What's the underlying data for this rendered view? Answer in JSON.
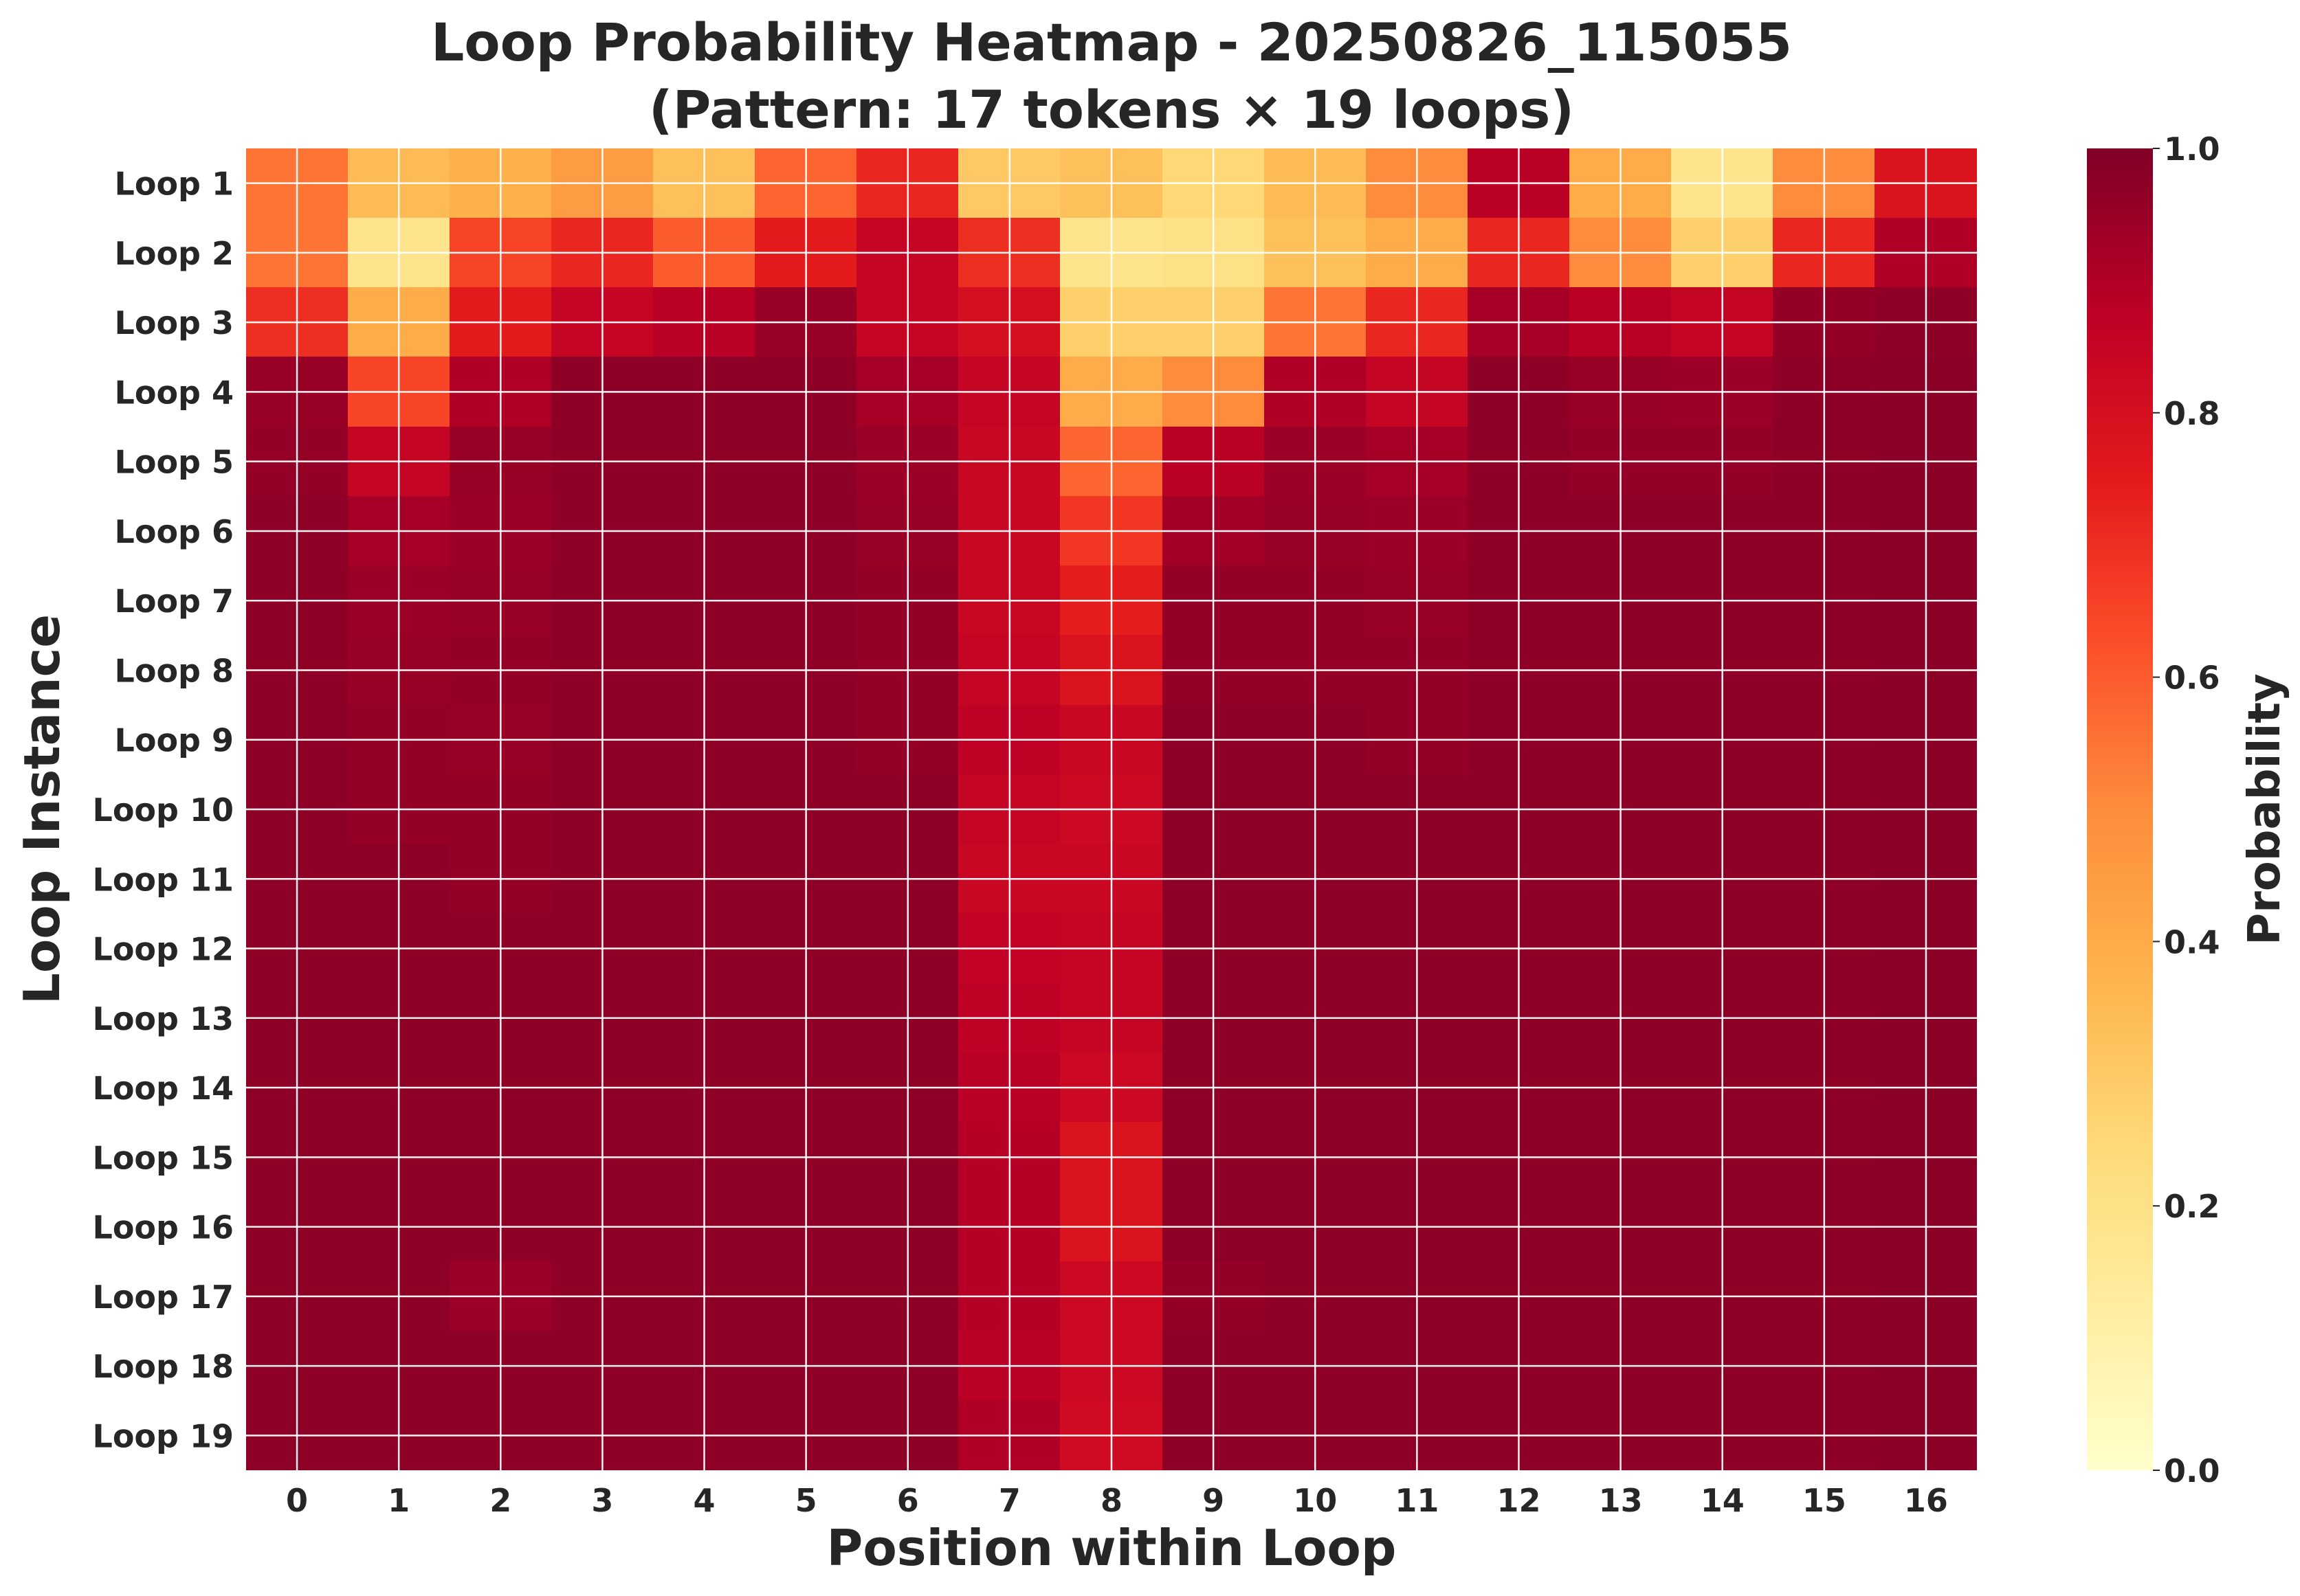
{
  "chart_data": {
    "type": "heatmap",
    "title_line1": "Loop Probability Heatmap - 20250826_115055",
    "title_line2": "(Pattern: 17 tokens × 19 loops)",
    "xlabel": "Position within Loop",
    "ylabel": "Loop Instance",
    "colorbar_label": "Probability",
    "colormap": "YlOrRd",
    "vmin": 0.0,
    "vmax": 1.0,
    "colorbar_ticks": [
      "0.0",
      "0.2",
      "0.4",
      "0.6",
      "0.8",
      "1.0"
    ],
    "x_categories": [
      "0",
      "1",
      "2",
      "3",
      "4",
      "5",
      "6",
      "7",
      "8",
      "9",
      "10",
      "11",
      "12",
      "13",
      "14",
      "15",
      "16"
    ],
    "y_categories": [
      "Loop 1",
      "Loop 2",
      "Loop 3",
      "Loop 4",
      "Loop 5",
      "Loop 6",
      "Loop 7",
      "Loop 8",
      "Loop 9",
      "Loop 10",
      "Loop 11",
      "Loop 12",
      "Loop 13",
      "Loop 14",
      "Loop 15",
      "Loop 16",
      "Loop 17",
      "Loop 18",
      "Loop 19"
    ],
    "grid": true,
    "values": [
      [
        0.55,
        0.35,
        0.38,
        0.45,
        0.33,
        0.58,
        0.72,
        0.3,
        0.33,
        0.25,
        0.35,
        0.5,
        0.88,
        0.4,
        0.18,
        0.5,
        0.78
      ],
      [
        0.55,
        0.18,
        0.65,
        0.72,
        0.6,
        0.75,
        0.85,
        0.7,
        0.18,
        0.2,
        0.33,
        0.4,
        0.72,
        0.5,
        0.28,
        0.72,
        0.9
      ],
      [
        0.7,
        0.4,
        0.75,
        0.85,
        0.88,
        0.95,
        0.85,
        0.8,
        0.28,
        0.28,
        0.55,
        0.72,
        0.92,
        0.88,
        0.85,
        0.96,
        0.97
      ],
      [
        0.95,
        0.65,
        0.9,
        0.97,
        0.97,
        0.97,
        0.92,
        0.85,
        0.4,
        0.5,
        0.9,
        0.85,
        0.97,
        0.95,
        0.94,
        0.97,
        0.98
      ],
      [
        0.96,
        0.85,
        0.95,
        0.97,
        0.97,
        0.97,
        0.94,
        0.84,
        0.58,
        0.88,
        0.94,
        0.92,
        0.97,
        0.96,
        0.96,
        0.97,
        0.98
      ],
      [
        0.97,
        0.92,
        0.94,
        0.97,
        0.97,
        0.97,
        0.95,
        0.84,
        0.68,
        0.93,
        0.95,
        0.94,
        0.97,
        0.97,
        0.97,
        0.97,
        0.98
      ],
      [
        0.97,
        0.94,
        0.95,
        0.97,
        0.97,
        0.97,
        0.96,
        0.84,
        0.74,
        0.96,
        0.96,
        0.95,
        0.97,
        0.97,
        0.97,
        0.97,
        0.98
      ],
      [
        0.97,
        0.95,
        0.96,
        0.97,
        0.97,
        0.97,
        0.96,
        0.85,
        0.78,
        0.96,
        0.96,
        0.96,
        0.97,
        0.97,
        0.97,
        0.97,
        0.98
      ],
      [
        0.97,
        0.96,
        0.95,
        0.97,
        0.97,
        0.97,
        0.96,
        0.87,
        0.84,
        0.97,
        0.97,
        0.96,
        0.97,
        0.97,
        0.97,
        0.97,
        0.98
      ],
      [
        0.97,
        0.96,
        0.96,
        0.97,
        0.97,
        0.97,
        0.97,
        0.85,
        0.83,
        0.97,
        0.97,
        0.97,
        0.97,
        0.97,
        0.97,
        0.97,
        0.98
      ],
      [
        0.97,
        0.97,
        0.96,
        0.97,
        0.97,
        0.97,
        0.97,
        0.84,
        0.84,
        0.97,
        0.97,
        0.97,
        0.97,
        0.97,
        0.97,
        0.97,
        0.98
      ],
      [
        0.97,
        0.97,
        0.97,
        0.97,
        0.97,
        0.97,
        0.97,
        0.86,
        0.85,
        0.97,
        0.97,
        0.97,
        0.97,
        0.97,
        0.97,
        0.97,
        0.98
      ],
      [
        0.97,
        0.97,
        0.97,
        0.97,
        0.97,
        0.97,
        0.97,
        0.87,
        0.85,
        0.97,
        0.97,
        0.97,
        0.97,
        0.97,
        0.97,
        0.97,
        0.98
      ],
      [
        0.97,
        0.97,
        0.97,
        0.97,
        0.97,
        0.97,
        0.97,
        0.88,
        0.83,
        0.97,
        0.97,
        0.97,
        0.97,
        0.97,
        0.97,
        0.97,
        0.98
      ],
      [
        0.97,
        0.97,
        0.97,
        0.97,
        0.97,
        0.97,
        0.97,
        0.89,
        0.78,
        0.97,
        0.97,
        0.97,
        0.97,
        0.97,
        0.97,
        0.97,
        0.98
      ],
      [
        0.97,
        0.97,
        0.97,
        0.97,
        0.97,
        0.97,
        0.97,
        0.89,
        0.78,
        0.97,
        0.97,
        0.97,
        0.97,
        0.97,
        0.97,
        0.97,
        0.98
      ],
      [
        0.97,
        0.97,
        0.94,
        0.97,
        0.97,
        0.97,
        0.97,
        0.89,
        0.83,
        0.96,
        0.97,
        0.97,
        0.97,
        0.97,
        0.97,
        0.97,
        0.98
      ],
      [
        0.97,
        0.97,
        0.97,
        0.97,
        0.97,
        0.97,
        0.97,
        0.88,
        0.83,
        0.97,
        0.97,
        0.97,
        0.97,
        0.97,
        0.97,
        0.97,
        0.98
      ],
      [
        0.97,
        0.97,
        0.97,
        0.97,
        0.97,
        0.97,
        0.97,
        0.9,
        0.82,
        0.97,
        0.97,
        0.97,
        0.97,
        0.97,
        0.97,
        0.97,
        0.98
      ]
    ]
  }
}
